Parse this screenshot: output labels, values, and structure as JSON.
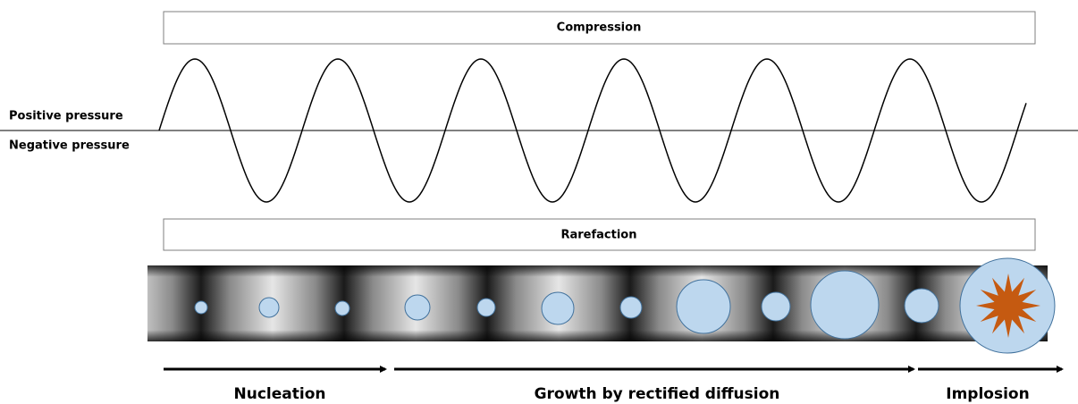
{
  "labels": {
    "compression": "Compression",
    "rarefaction": "Rarefaction",
    "positive": "Positive pressure",
    "negative": "Negative pressure"
  },
  "stages": [
    "Nucleation",
    "Growth by rectified diffusion",
    "Implosion"
  ]
}
